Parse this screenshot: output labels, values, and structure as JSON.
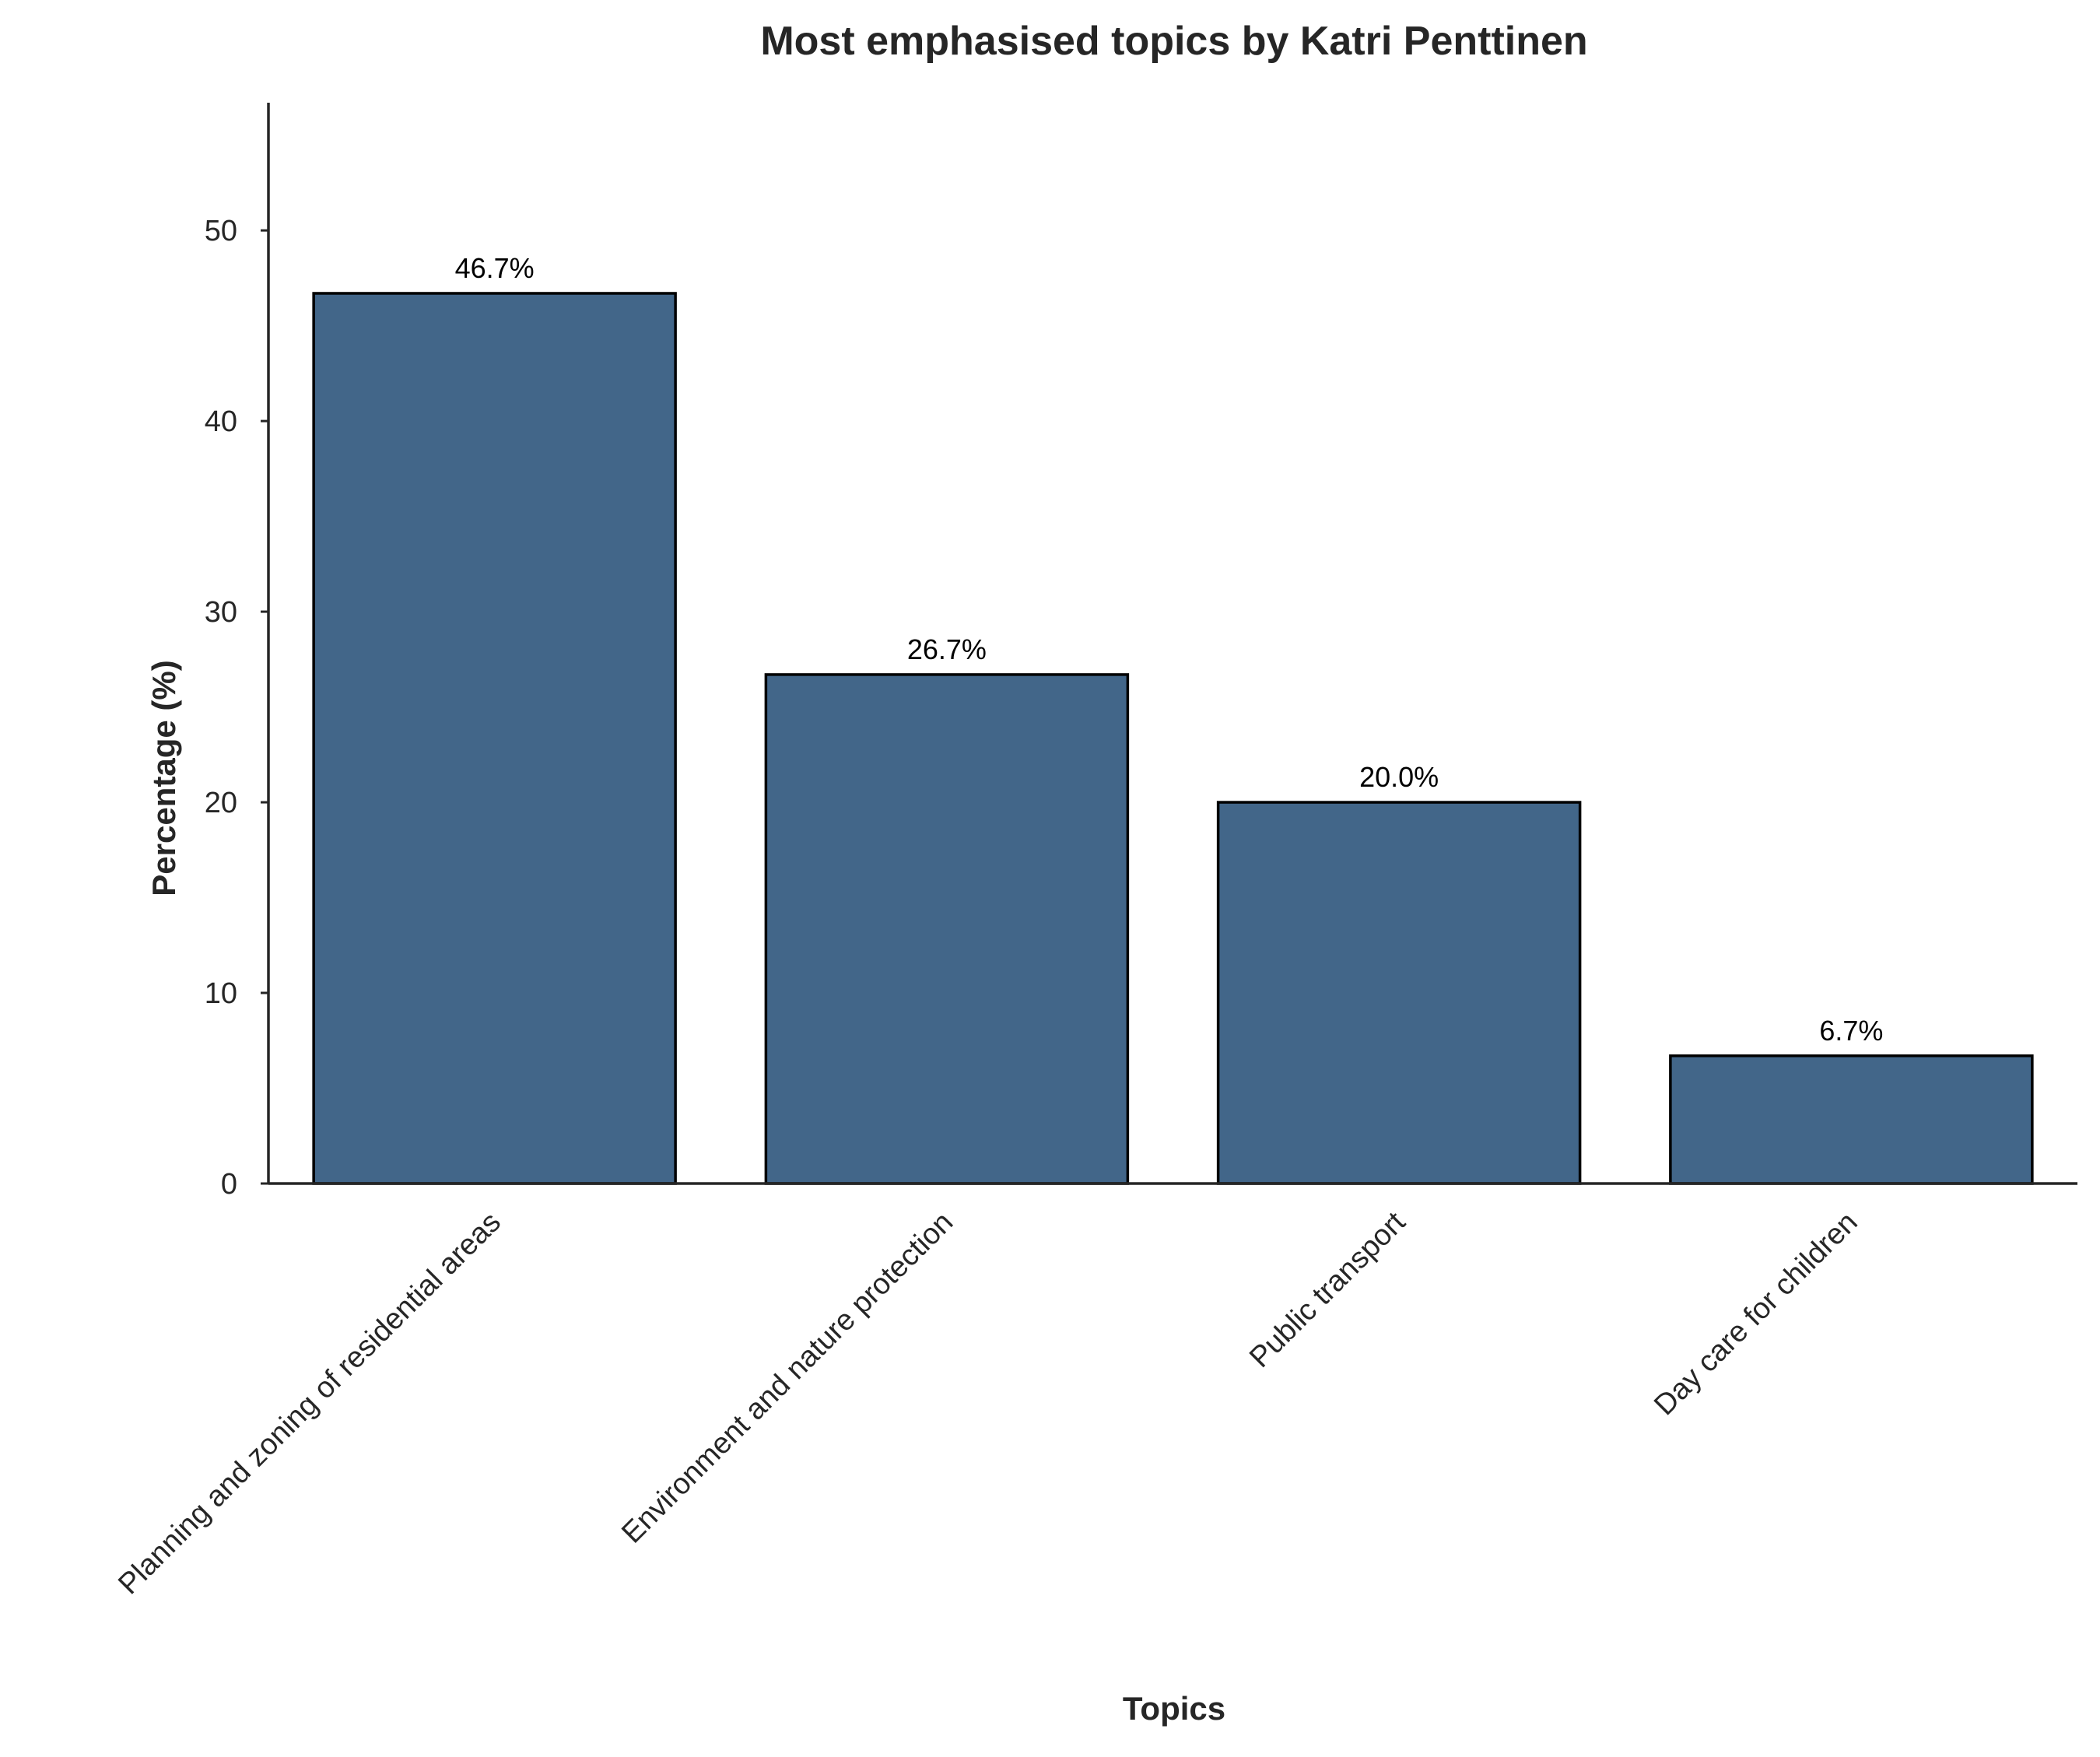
{
  "chart_data": {
    "type": "bar",
    "title": "Most emphasised topics by Katri Penttinen",
    "xlabel": "Topics",
    "ylabel": "Percentage (%)",
    "categories": [
      "Planning and zoning of residential areas",
      "Environment and nature protection",
      "Public transport",
      "Day care for children"
    ],
    "values": [
      46.7,
      26.7,
      20.0,
      6.7
    ],
    "value_labels": [
      "46.7%",
      "26.7%",
      "20.0%",
      "6.7%"
    ],
    "ylim": [
      0,
      56.7
    ],
    "yticks": [
      0,
      10,
      20,
      30,
      40,
      50
    ],
    "grid": false,
    "legend": "none",
    "colors": {
      "bar_fill": "#426689",
      "bar_edge": "#000000",
      "axis": "#262626",
      "text": "#262626"
    }
  }
}
